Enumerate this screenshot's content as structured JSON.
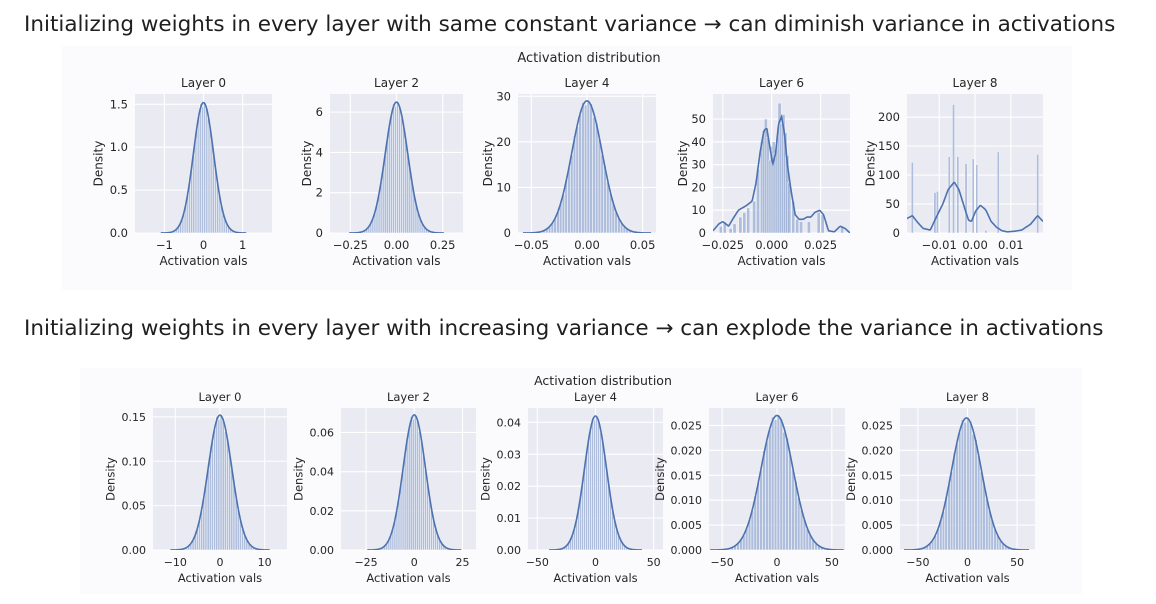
{
  "headings": {
    "top": "Initializing weights in every layer with same constant variance → can diminish variance in activations",
    "bottom": "Initializing weights in every layer with increasing variance → can explode the variance in activations"
  },
  "colors": {
    "plot_bg": "#eaeaf2",
    "line": "#4c72b0",
    "bar": "#9aaed3",
    "grid": "#ffffff"
  },
  "chart_data": [
    {
      "type": "histogram",
      "title": "Activation distribution",
      "xlabel": "Activation vals",
      "ylabel": "Density",
      "subplots": [
        {
          "title": "Layer 0",
          "kind": "gauss",
          "mean": 0,
          "sd": 0.26,
          "peak": 1.52,
          "xlim": [
            -1.75,
            1.75
          ],
          "xticks": [
            -1,
            0,
            1
          ],
          "xtick_labels": [
            "−1",
            "0",
            "1"
          ],
          "ylim": [
            0,
            1.62
          ],
          "yticks": [
            0,
            0.5,
            1.0,
            1.5
          ],
          "ytick_labels": [
            "0.0",
            "0.5",
            "1.0",
            "1.5"
          ]
        },
        {
          "title": "Layer 2",
          "kind": "gauss",
          "mean": 0,
          "sd": 0.061,
          "peak": 6.5,
          "xlim": [
            -0.36,
            0.36
          ],
          "xticks": [
            -0.25,
            0,
            0.25
          ],
          "xtick_labels": [
            "−0.25",
            "0.00",
            "0.25"
          ],
          "ylim": [
            0,
            6.9
          ],
          "yticks": [
            0,
            2,
            4,
            6
          ],
          "ytick_labels": [
            "0",
            "2",
            "4",
            "6"
          ]
        },
        {
          "title": "Layer 4",
          "kind": "gauss",
          "mean": 0,
          "sd": 0.0137,
          "peak": 29,
          "xlim": [
            -0.062,
            0.062
          ],
          "xticks": [
            -0.05,
            0,
            0.05
          ],
          "xtick_labels": [
            "−0.05",
            "0.00",
            "0.05"
          ],
          "ylim": [
            0,
            30.5
          ],
          "yticks": [
            0,
            10,
            20,
            30
          ],
          "ytick_labels": [
            "0",
            "10",
            "20",
            "30"
          ]
        },
        {
          "title": "Layer 6",
          "kind": "custom",
          "xlim": [
            -0.03,
            0.04
          ],
          "xticks": [
            -0.025,
            0,
            0.025
          ],
          "xtick_labels": [
            "−0.025",
            "0.000",
            "0.025"
          ],
          "ylim": [
            0,
            61
          ],
          "yticks": [
            0,
            10,
            20,
            30,
            40,
            50
          ],
          "ytick_labels": [
            "0",
            "10",
            "20",
            "30",
            "40",
            "50"
          ],
          "curve": [
            [
              -0.03,
              1
            ],
            [
              -0.027,
              4
            ],
            [
              -0.025,
              5
            ],
            [
              -0.022,
              3
            ],
            [
              -0.02,
              6
            ],
            [
              -0.017,
              10
            ],
            [
              -0.013,
              12
            ],
            [
              -0.01,
              14
            ],
            [
              -0.008,
              22
            ],
            [
              -0.006,
              35
            ],
            [
              -0.004,
              45
            ],
            [
              -0.0025,
              46
            ],
            [
              -0.001,
              38
            ],
            [
              0.0005,
              30
            ],
            [
              0.002,
              35
            ],
            [
              0.0035,
              48
            ],
            [
              0.005,
              51
            ],
            [
              0.0065,
              44
            ],
            [
              0.008,
              30
            ],
            [
              0.01,
              18
            ],
            [
              0.012,
              8
            ],
            [
              0.014,
              6
            ],
            [
              0.016,
              6
            ],
            [
              0.018,
              7
            ],
            [
              0.02,
              7
            ],
            [
              0.022,
              9
            ],
            [
              0.0245,
              10
            ],
            [
              0.0265,
              8
            ],
            [
              0.029,
              1
            ],
            [
              0.032,
              0.5
            ],
            [
              0.035,
              3
            ],
            [
              0.0375,
              2
            ],
            [
              0.04,
              0
            ]
          ],
          "bars": [
            [
              -0.026,
              3
            ],
            [
              -0.024,
              5
            ],
            [
              -0.021,
              2
            ],
            [
              -0.019,
              4
            ],
            [
              -0.016,
              7
            ],
            [
              -0.014,
              9
            ],
            [
              -0.012,
              11
            ],
            [
              -0.009,
              14
            ],
            [
              -0.007,
              28
            ],
            [
              -0.005,
              40
            ],
            [
              -0.004,
              45
            ],
            [
              -0.003,
              50
            ],
            [
              -0.002,
              42
            ],
            [
              -0.001,
              32
            ],
            [
              0,
              38
            ],
            [
              0.001,
              40
            ],
            [
              0.002,
              35
            ],
            [
              0.003,
              42
            ],
            [
              0.004,
              57
            ],
            [
              0.005,
              48
            ],
            [
              0.006,
              52
            ],
            [
              0.007,
              44
            ],
            [
              0.008,
              34
            ],
            [
              0.009,
              22
            ],
            [
              0.011,
              14
            ],
            [
              0.013,
              6
            ],
            [
              0.015,
              5
            ],
            [
              0.019,
              5
            ],
            [
              0.024,
              9
            ],
            [
              0.026,
              8
            ],
            [
              0.036,
              3
            ]
          ]
        },
        {
          "title": "Layer 8",
          "kind": "custom",
          "xlim": [
            -0.019,
            0.019
          ],
          "xticks": [
            -0.01,
            0,
            0.01
          ],
          "xtick_labels": [
            "−0.01",
            "0.00",
            "0.01"
          ],
          "ylim": [
            0,
            240
          ],
          "yticks": [
            0,
            50,
            100,
            150,
            200
          ],
          "ytick_labels": [
            "0",
            "50",
            "100",
            "150",
            "200"
          ],
          "curve": [
            [
              -0.019,
              25
            ],
            [
              -0.0175,
              30
            ],
            [
              -0.016,
              18
            ],
            [
              -0.0145,
              8
            ],
            [
              -0.0125,
              5
            ],
            [
              -0.011,
              25
            ],
            [
              -0.009,
              50
            ],
            [
              -0.0075,
              75
            ],
            [
              -0.0058,
              88
            ],
            [
              -0.0045,
              75
            ],
            [
              -0.003,
              45
            ],
            [
              -0.0018,
              22
            ],
            [
              -0.001,
              20
            ],
            [
              0.0002,
              38
            ],
            [
              0.0015,
              48
            ],
            [
              0.003,
              40
            ],
            [
              0.0045,
              20
            ],
            [
              0.006,
              10
            ],
            [
              0.0075,
              4
            ],
            [
              0.009,
              2
            ],
            [
              0.011,
              3
            ],
            [
              0.013,
              5
            ],
            [
              0.0155,
              15
            ],
            [
              0.0175,
              30
            ],
            [
              0.019,
              20
            ]
          ],
          "bars": [
            [
              -0.0175,
              122
            ],
            [
              -0.0112,
              70
            ],
            [
              -0.0105,
              72
            ],
            [
              -0.0072,
              132
            ],
            [
              -0.006,
              222
            ],
            [
              -0.0048,
              132
            ],
            [
              -0.0025,
              120
            ],
            [
              -0.0005,
              128
            ],
            [
              0.0005,
              118
            ],
            [
              0.003,
              5
            ],
            [
              0.0065,
              140
            ],
            [
              0.0175,
              136
            ]
          ]
        }
      ]
    },
    {
      "type": "histogram",
      "title": "Activation distribution",
      "xlabel": "Activation vals",
      "ylabel": "Density",
      "subplots": [
        {
          "title": "Layer 0",
          "kind": "gauss",
          "mean": 0,
          "sd": 2.65,
          "peak": 0.152,
          "xlim": [
            -15,
            15
          ],
          "xticks": [
            -10,
            0,
            10
          ],
          "xtick_labels": [
            "−10",
            "0",
            "10"
          ],
          "ylim": [
            0,
            0.16
          ],
          "yticks": [
            0,
            0.05,
            0.1,
            0.15
          ],
          "ytick_labels": [
            "0.00",
            "0.05",
            "0.10",
            "0.15"
          ]
        },
        {
          "title": "Layer 2",
          "kind": "gauss",
          "mean": 0,
          "sd": 5.8,
          "peak": 0.069,
          "xlim": [
            -38,
            32
          ],
          "xticks": [
            -25,
            0,
            25
          ],
          "xtick_labels": [
            "−25",
            "0",
            "25"
          ],
          "ylim": [
            0,
            0.0725
          ],
          "yticks": [
            0,
            0.02,
            0.04,
            0.06
          ],
          "ytick_labels": [
            "0.00",
            "0.02",
            "0.04",
            "0.06"
          ]
        },
        {
          "title": "Layer 4",
          "kind": "gauss",
          "mean": 0,
          "sd": 9.5,
          "peak": 0.042,
          "xlim": [
            -58,
            58
          ],
          "xticks": [
            -50,
            0,
            50
          ],
          "xtick_labels": [
            "−50",
            "0",
            "50"
          ],
          "ylim": [
            0,
            0.0445
          ],
          "yticks": [
            0,
            0.01,
            0.02,
            0.03,
            0.04
          ],
          "ytick_labels": [
            "0.00",
            "0.01",
            "0.02",
            "0.03",
            "0.04"
          ]
        },
        {
          "title": "Layer 6",
          "kind": "gauss",
          "mean": 0,
          "sd": 14.5,
          "peak": 0.027,
          "xlim": [
            -62,
            62
          ],
          "xticks": [
            -50,
            0,
            50
          ],
          "xtick_labels": [
            "−50",
            "0",
            "50"
          ],
          "ylim": [
            0,
            0.0285
          ],
          "yticks": [
            0,
            0.005,
            0.01,
            0.015,
            0.02,
            0.025
          ],
          "ytick_labels": [
            "0.000",
            "0.005",
            "0.010",
            "0.015",
            "0.020",
            "0.025"
          ]
        },
        {
          "title": "Layer 8",
          "kind": "gauss",
          "mean": -1,
          "sd": 15,
          "peak": 0.0265,
          "xlim": [
            -68,
            68
          ],
          "xticks": [
            -50,
            0,
            50
          ],
          "xtick_labels": [
            "−50",
            "0",
            "50"
          ],
          "ylim": [
            0,
            0.0285
          ],
          "yticks": [
            0,
            0.005,
            0.01,
            0.015,
            0.02,
            0.025
          ],
          "ytick_labels": [
            "0.000",
            "0.005",
            "0.010",
            "0.015",
            "0.020",
            "0.025"
          ]
        }
      ]
    }
  ]
}
